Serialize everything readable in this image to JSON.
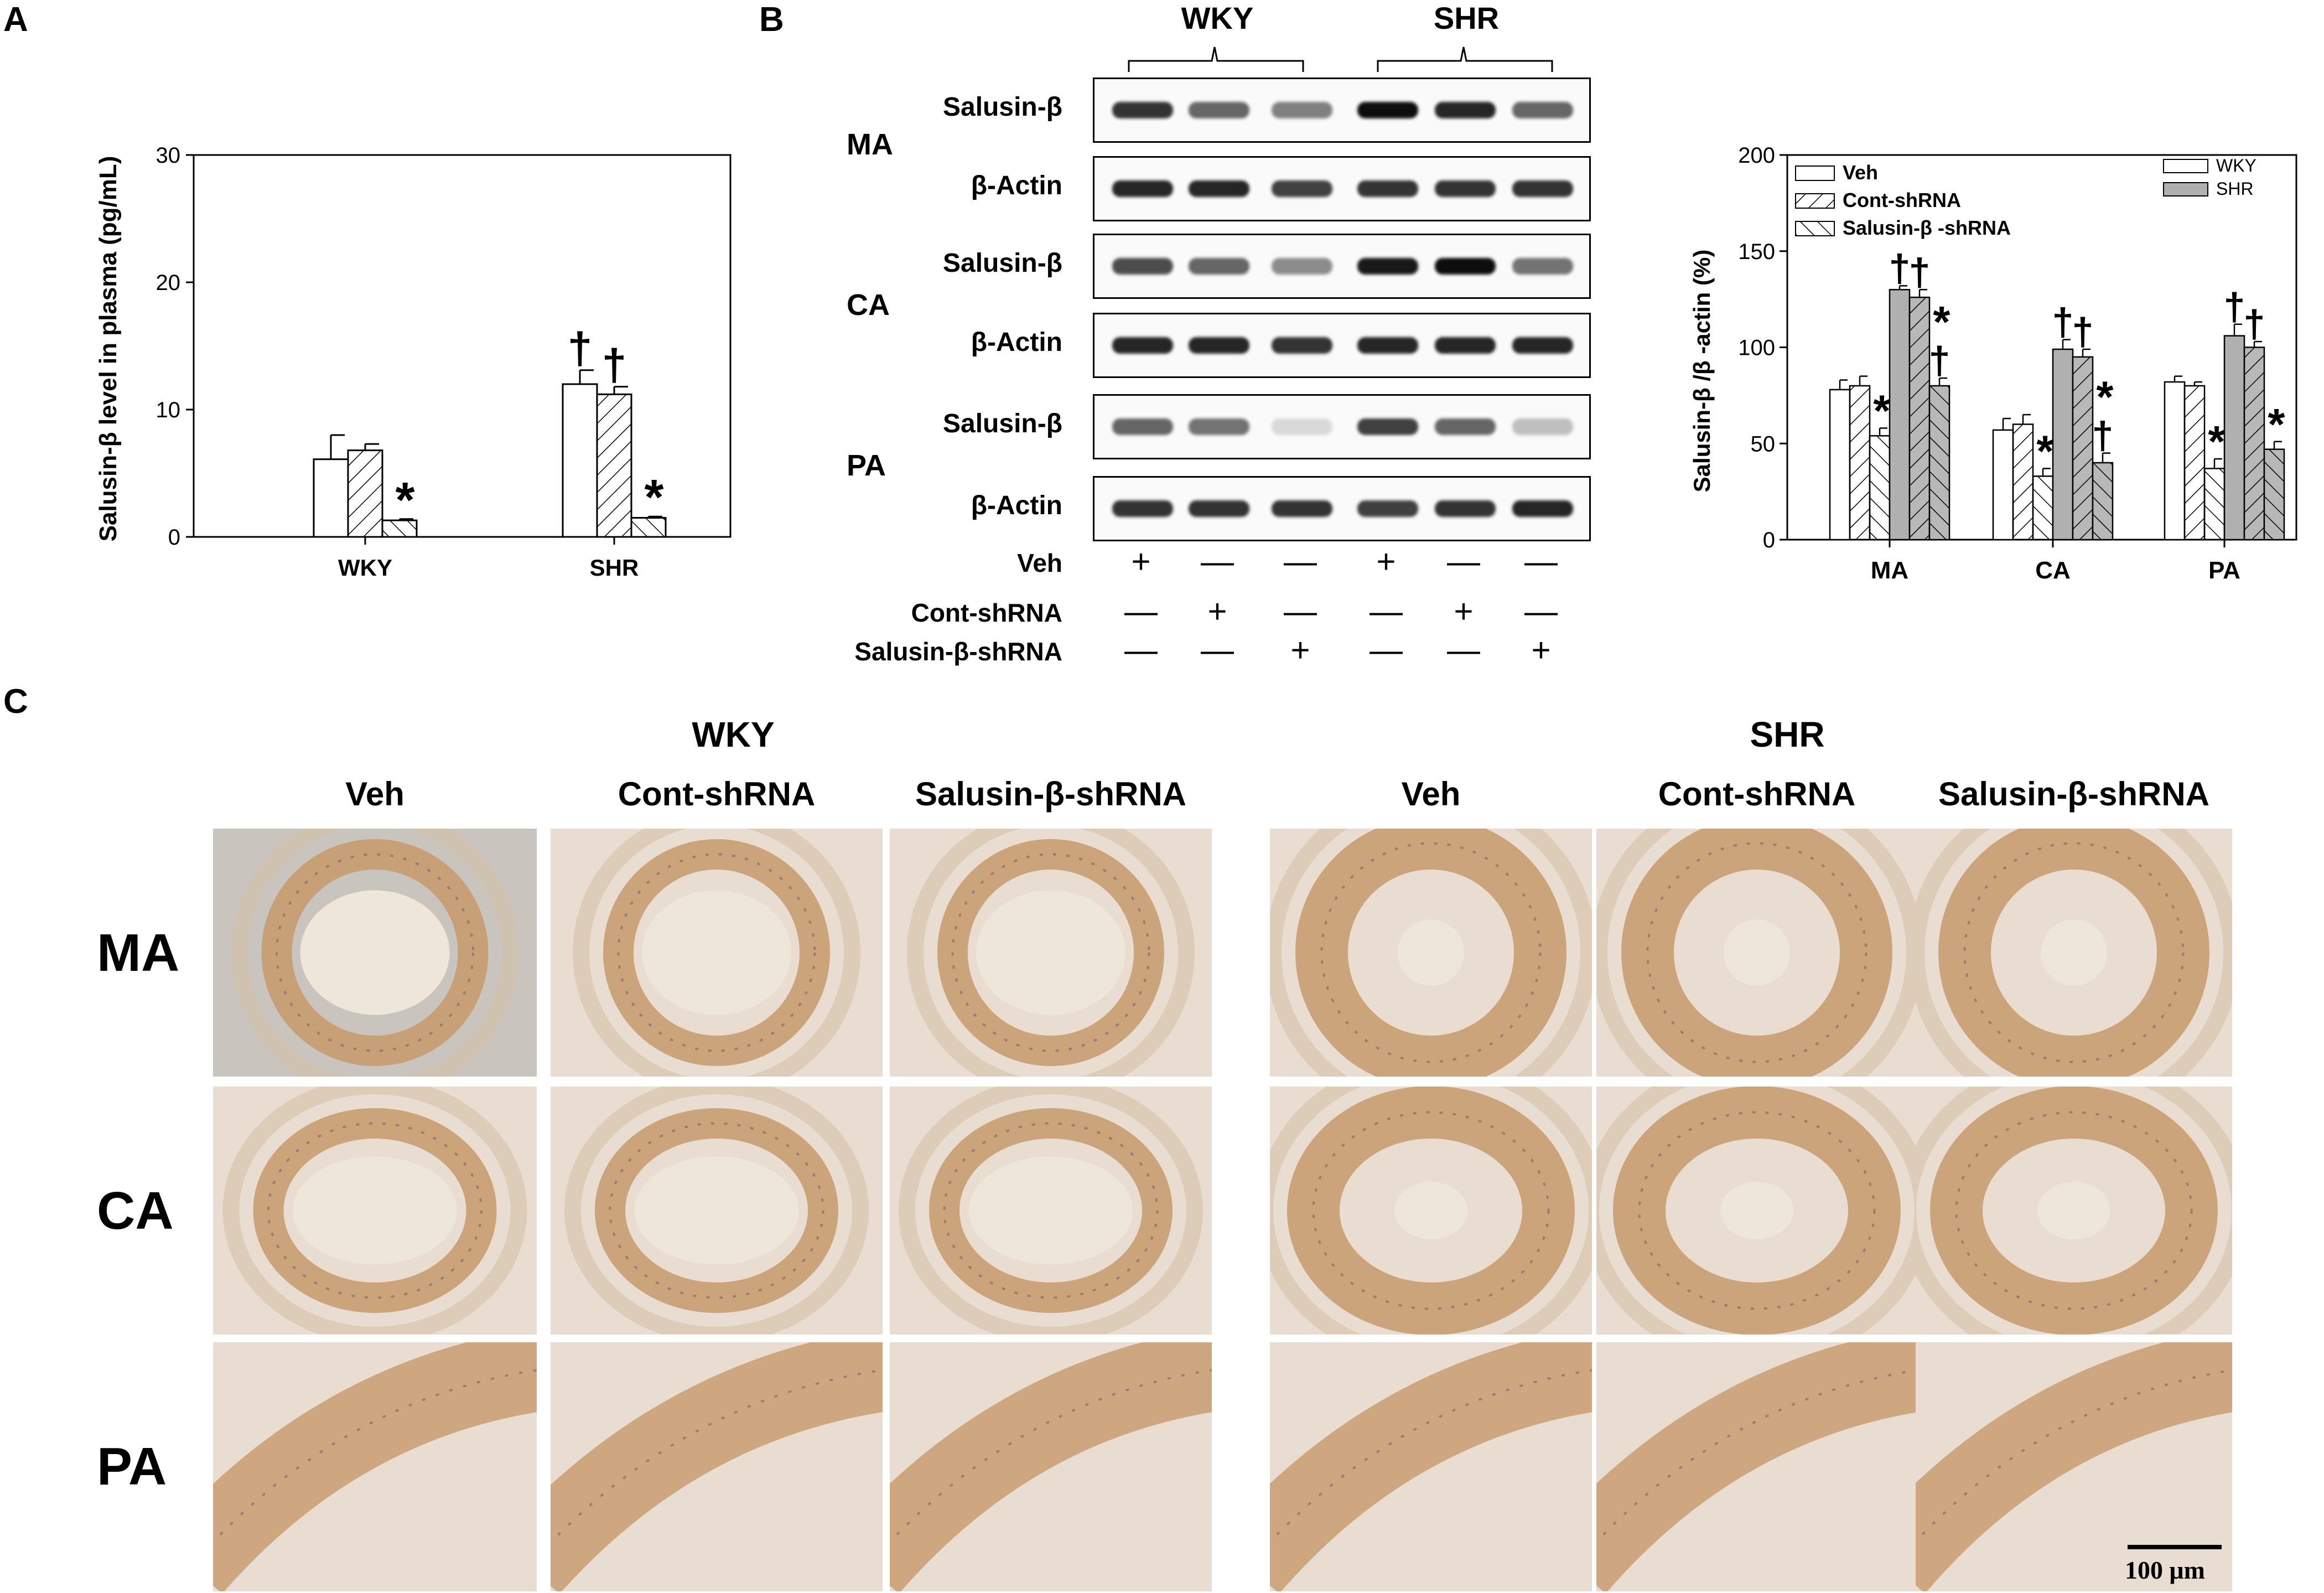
{
  "panels": {
    "a": "A",
    "b": "B",
    "c": "C"
  },
  "panel_a": {
    "ylabel": "Salusin-β  level in plasma (pg/mL)",
    "yticks": [
      "0",
      "10",
      "20",
      "30"
    ],
    "categories": [
      "WKY",
      "SHR"
    ],
    "marks": [
      {
        "dagger": [
          "",
          "",
          ""
        ],
        "star": [
          "",
          "",
          "*"
        ]
      },
      {
        "dagger": [
          "†",
          "†",
          ""
        ],
        "star": [
          "",
          "",
          "*"
        ]
      }
    ]
  },
  "panel_b_blot": {
    "groups": [
      "WKY",
      "SHR"
    ],
    "tissues": [
      "MA",
      "CA",
      "PA"
    ],
    "band_labels": [
      "Salusin-β",
      "β-Actin"
    ],
    "treatment_labels": [
      "Veh",
      "Cont-shRNA",
      "Salusin-β-shRNA"
    ],
    "signs": [
      [
        "+",
        "—",
        "—",
        "+",
        "—",
        "—"
      ],
      [
        "—",
        "+",
        "—",
        "—",
        "+",
        "—"
      ],
      [
        "—",
        "—",
        "+",
        "—",
        "—",
        "+"
      ]
    ],
    "intensities": [
      [
        0.8,
        0.6,
        0.5,
        0.95,
        0.85,
        0.6
      ],
      [
        0.85,
        0.85,
        0.75,
        0.8,
        0.8,
        0.8
      ],
      [
        0.7,
        0.6,
        0.45,
        0.9,
        0.95,
        0.55
      ],
      [
        0.85,
        0.85,
        0.8,
        0.85,
        0.85,
        0.85
      ],
      [
        0.6,
        0.55,
        0.15,
        0.75,
        0.6,
        0.25
      ],
      [
        0.8,
        0.8,
        0.8,
        0.75,
        0.8,
        0.85
      ]
    ]
  },
  "panel_b_chart": {
    "ylabel": "Salusin-β /β -actin (%)",
    "yticks": [
      "0",
      "50",
      "100",
      "150",
      "200"
    ],
    "categories": [
      "MA",
      "CA",
      "PA"
    ],
    "legend_treatment": [
      "Veh",
      "Cont-shRNA",
      "Salusin-β -shRNA"
    ],
    "legend_strain": [
      "WKY",
      "SHR"
    ]
  },
  "chart_data": [
    {
      "type": "bar",
      "categories": [
        "WKY",
        "SHR"
      ],
      "series": [
        {
          "values": [
            6.1,
            12.0
          ],
          "errors": [
            1.9,
            1.1
          ]
        },
        {
          "values": [
            6.8,
            11.2
          ],
          "errors": [
            0.5,
            0.6
          ]
        },
        {
          "values": [
            1.3,
            1.5
          ],
          "errors": [
            0.1,
            0.1
          ]
        }
      ],
      "xlabel": "",
      "ylabel": "Salusin-β  level in plasma (pg/mL)",
      "ylim": [
        0,
        30
      ],
      "grid": false
    },
    {
      "type": "bar",
      "categories": [
        "MA",
        "CA",
        "PA"
      ],
      "series": [
        {
          "name": "WKY",
          "values": [
            78,
            57,
            82
          ],
          "errors": [
            5,
            6,
            3
          ]
        },
        {
          "name": "WKY",
          "values": [
            80,
            60,
            80
          ],
          "errors": [
            5,
            5,
            2
          ]
        },
        {
          "name": "WKY",
          "values": [
            54,
            33,
            37
          ],
          "errors": [
            4,
            4,
            5
          ]
        },
        {
          "name": "SHR",
          "values": [
            130,
            99,
            106
          ],
          "errors": [
            2,
            5,
            6
          ]
        },
        {
          "name": "SHR",
          "values": [
            126,
            95,
            100
          ],
          "errors": [
            4,
            4,
            3
          ]
        },
        {
          "name": "SHR",
          "values": [
            80,
            40,
            47
          ],
          "errors": [
            4,
            5,
            4
          ]
        }
      ],
      "xlabel": "",
      "ylabel": "Salusin-β /β -actin (%)",
      "ylim": [
        0,
        200
      ],
      "grid": false,
      "legend": "top-right"
    }
  ],
  "panel_c": {
    "groups": [
      "WKY",
      "SHR"
    ],
    "columns": [
      "Veh",
      "Cont-shRNA",
      "Salusin-β-shRNA",
      "Veh",
      "Cont-shRNA",
      "Salusin-β-shRNA"
    ],
    "rows": [
      "MA",
      "CA",
      "PA"
    ],
    "scale_label": "100 μm"
  }
}
